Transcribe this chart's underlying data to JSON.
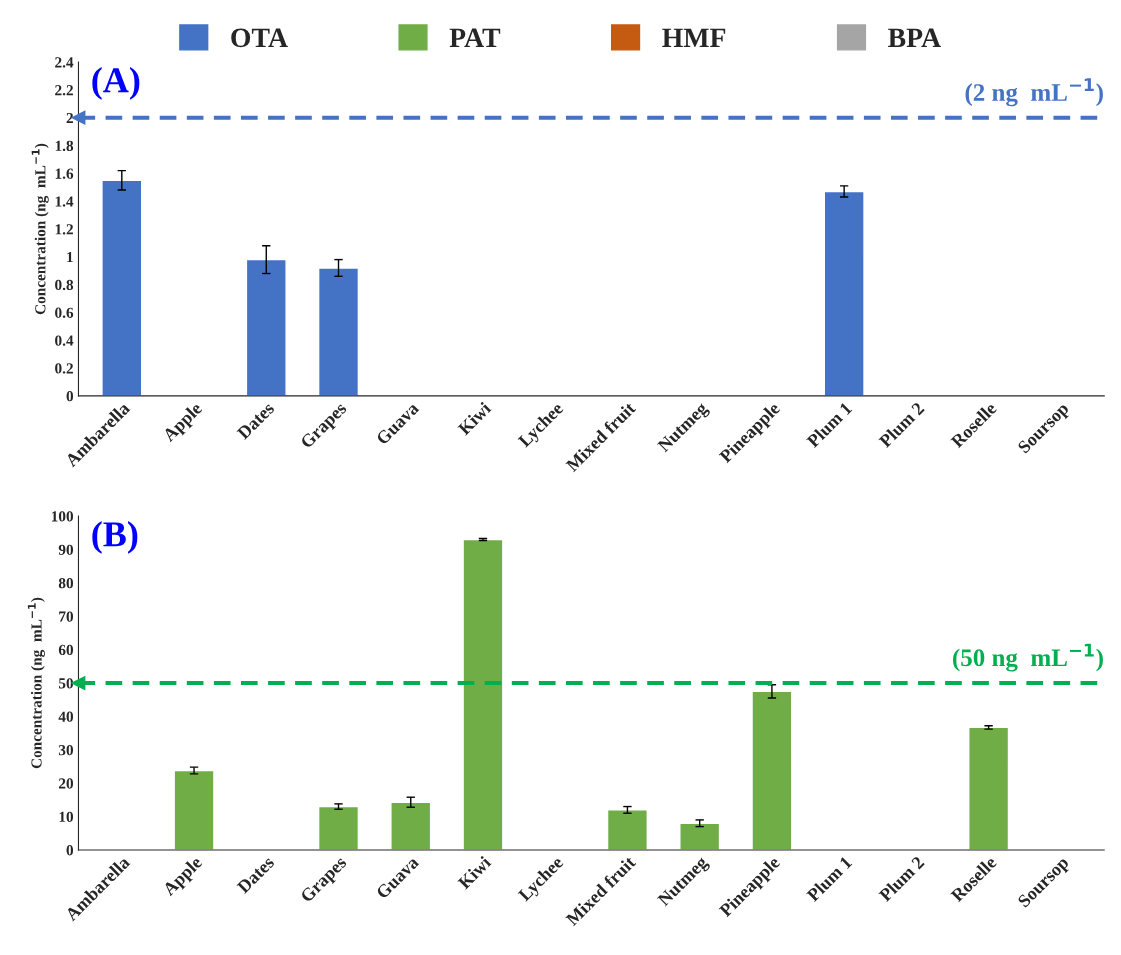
{
  "chart_data": [
    {
      "type": "bar",
      "title": "(A)",
      "ylabel": "Concentration (ng  mL$^{−1}$)",
      "categories": [
        "Ambarella",
        "Apple",
        "Dates",
        "Grapes",
        "Guava",
        "Kiwi",
        "Lychee",
        "Mixed fruit",
        "Nutmeg",
        "Pineapple",
        "Plum 1",
        "Plum 2",
        "Roselle",
        "Soursop"
      ],
      "series": [
        {
          "name": "OTA",
          "color": "#4472c4",
          "values": [
            1.55,
            null,
            0.98,
            0.92,
            null,
            null,
            null,
            null,
            null,
            null,
            1.47,
            null,
            null,
            null
          ],
          "errors": [
            0.07,
            null,
            0.1,
            0.06,
            null,
            null,
            null,
            null,
            null,
            null,
            0.04,
            null,
            null,
            null
          ]
        }
      ],
      "ylim": [
        0,
        2.4
      ],
      "yticks": [
        0,
        0.2,
        0.4,
        0.6,
        0.8,
        1,
        1.2,
        1.4,
        1.6,
        1.8,
        2,
        2.2,
        2.4
      ],
      "ref_lines": [
        {
          "axis": "y",
          "value": 2,
          "label": "(2 ng  mL$^{−1}$)",
          "color": "#4472c4",
          "line_style": "dashed"
        }
      ],
      "grid": false,
      "legend": "top"
    },
    {
      "type": "bar",
      "title": "(B)",
      "ylabel": "Concentration (ng  mL$^{−1}$)",
      "categories": [
        "Ambarella",
        "Apple",
        "Dates",
        "Grapes",
        "Guava",
        "Kiwi",
        "Lychee",
        "Mixed fruit",
        "Nutmeg",
        "Pineapple",
        "Plum 1",
        "Plum 2",
        "Roselle",
        "Soursop"
      ],
      "series": [
        {
          "name": "PAT",
          "color": "#70ad47",
          "values": [
            null,
            23.8,
            null,
            13,
            14.3,
            93,
            null,
            12,
            8,
            47.5,
            null,
            null,
            36.7,
            null
          ],
          "errors": [
            null,
            1,
            null,
            0.8,
            1.5,
            0.3,
            null,
            1,
            1,
            2,
            null,
            null,
            0.5,
            null
          ]
        },
        {
          "name": "HMF",
          "color": "#c55a11",
          "values": [
            null,
            null,
            null,
            null,
            null,
            null,
            null,
            null,
            null,
            null,
            null,
            null,
            null,
            null
          ]
        },
        {
          "name": "BPA",
          "color": "#a5a5a5",
          "values": [
            null,
            null,
            null,
            null,
            null,
            null,
            null,
            null,
            null,
            null,
            null,
            null,
            null,
            null
          ]
        }
      ],
      "ylim": [
        0,
        100
      ],
      "yticks": [
        0,
        10,
        20,
        30,
        40,
        50,
        60,
        70,
        80,
        90,
        100
      ],
      "ref_lines": [
        {
          "axis": "y",
          "value": 50,
          "label": "(50 ng  mL$^{−1}$)",
          "color": "#00b050",
          "line_style": "dashed"
        }
      ],
      "grid": false
    }
  ]
}
